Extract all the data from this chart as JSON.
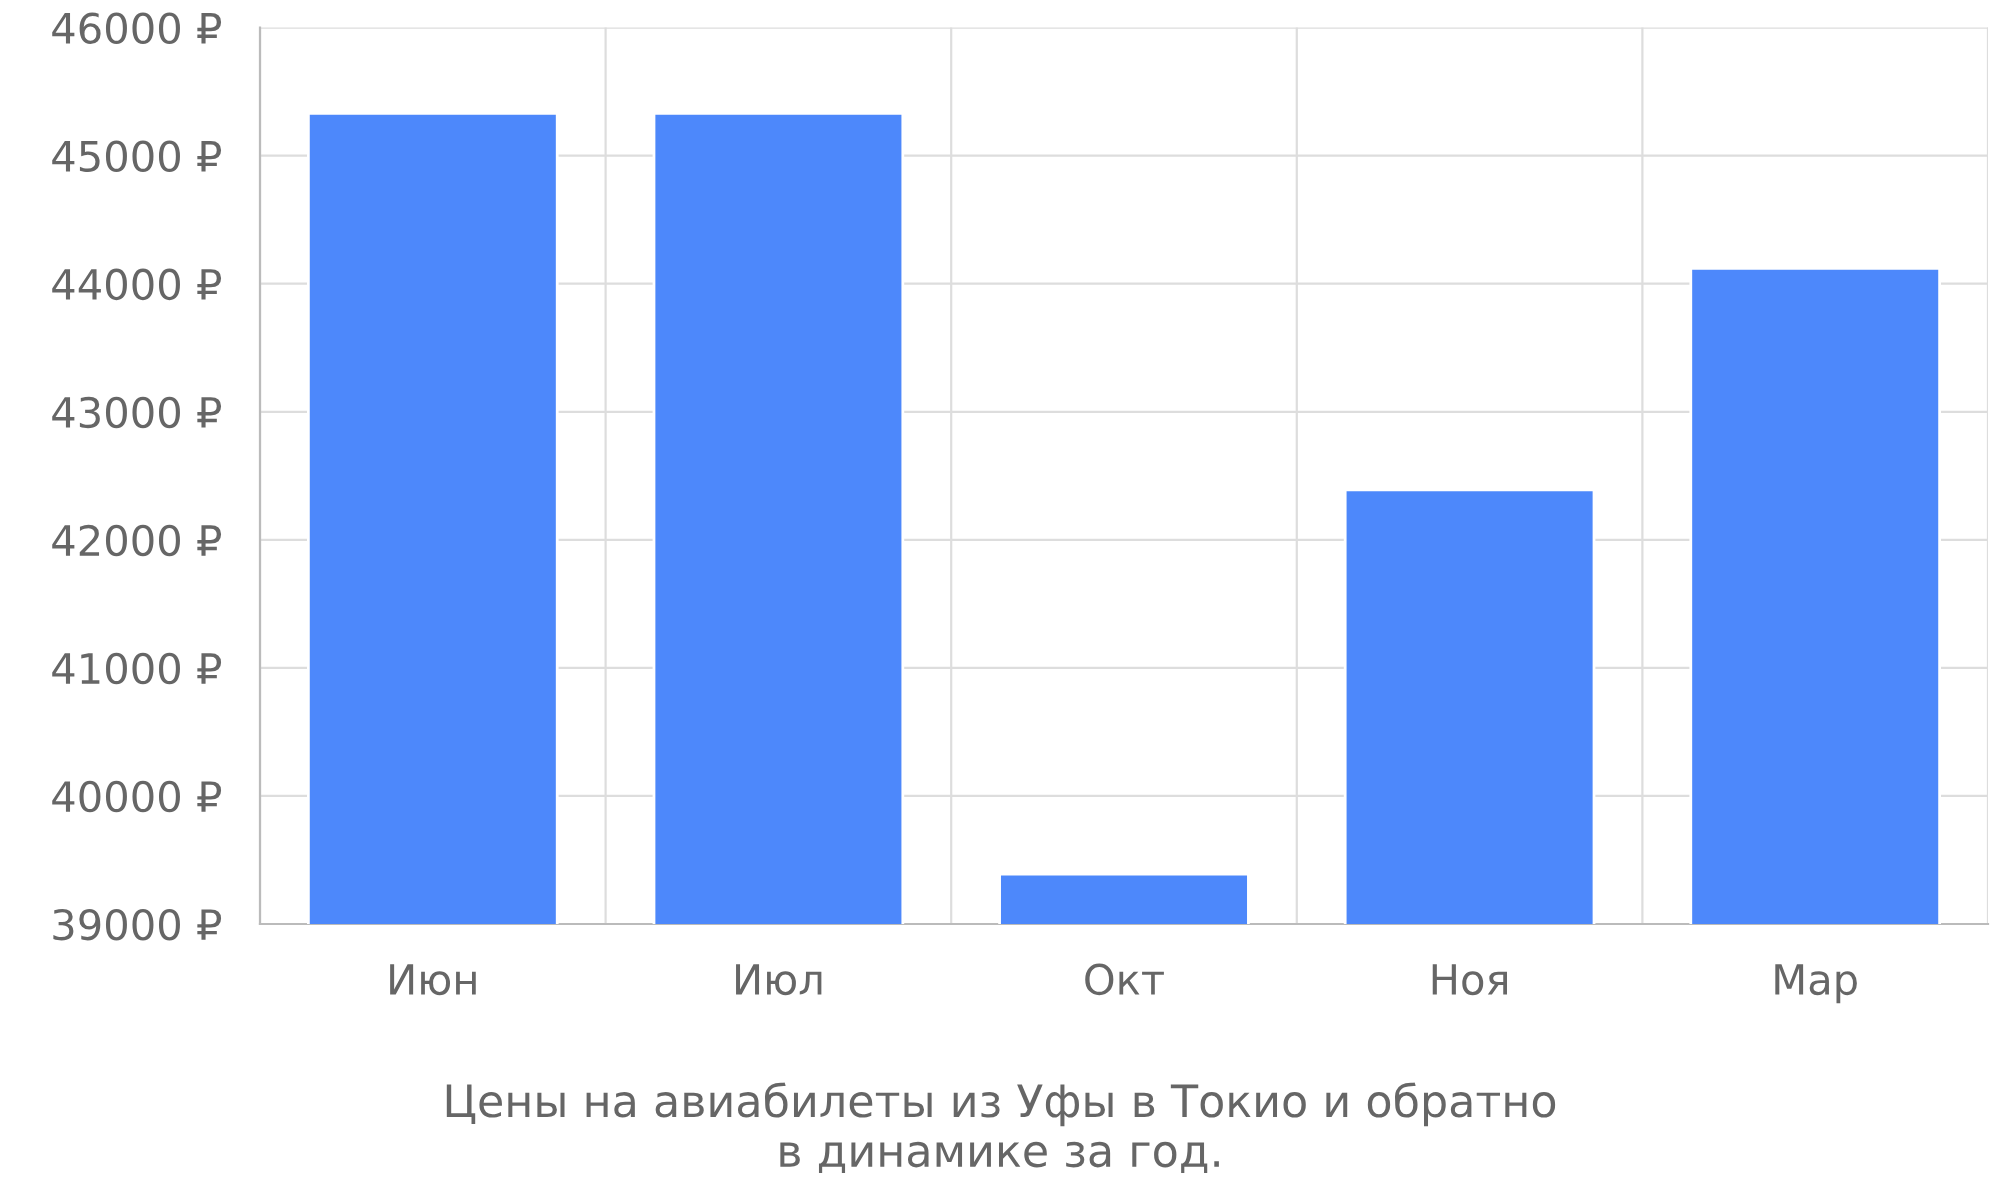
{
  "chart_data": {
    "type": "bar",
    "title": "Цены на авиабилеты из Уфы в Токио и обратно\nв динамике за год.",
    "categories": [
      "Июн",
      "Июл",
      "Окт",
      "Ноя",
      "Мар"
    ],
    "values": [
      45330,
      45330,
      39390,
      42390,
      44120
    ],
    "color": "#4d88fb",
    "ylim": [
      39000,
      46000
    ],
    "yticks": [
      {
        "value": 39000,
        "label": "39000 ₽"
      },
      {
        "value": 40000,
        "label": "40000 ₽"
      },
      {
        "value": 41000,
        "label": "41000 ₽"
      },
      {
        "value": 42000,
        "label": "42000 ₽"
      },
      {
        "value": 43000,
        "label": "43000 ₽"
      },
      {
        "value": 44000,
        "label": "44000 ₽"
      },
      {
        "value": 45000,
        "label": "45000 ₽"
      },
      {
        "value": 46000,
        "label": "46000 ₽"
      }
    ],
    "grid": true
  }
}
